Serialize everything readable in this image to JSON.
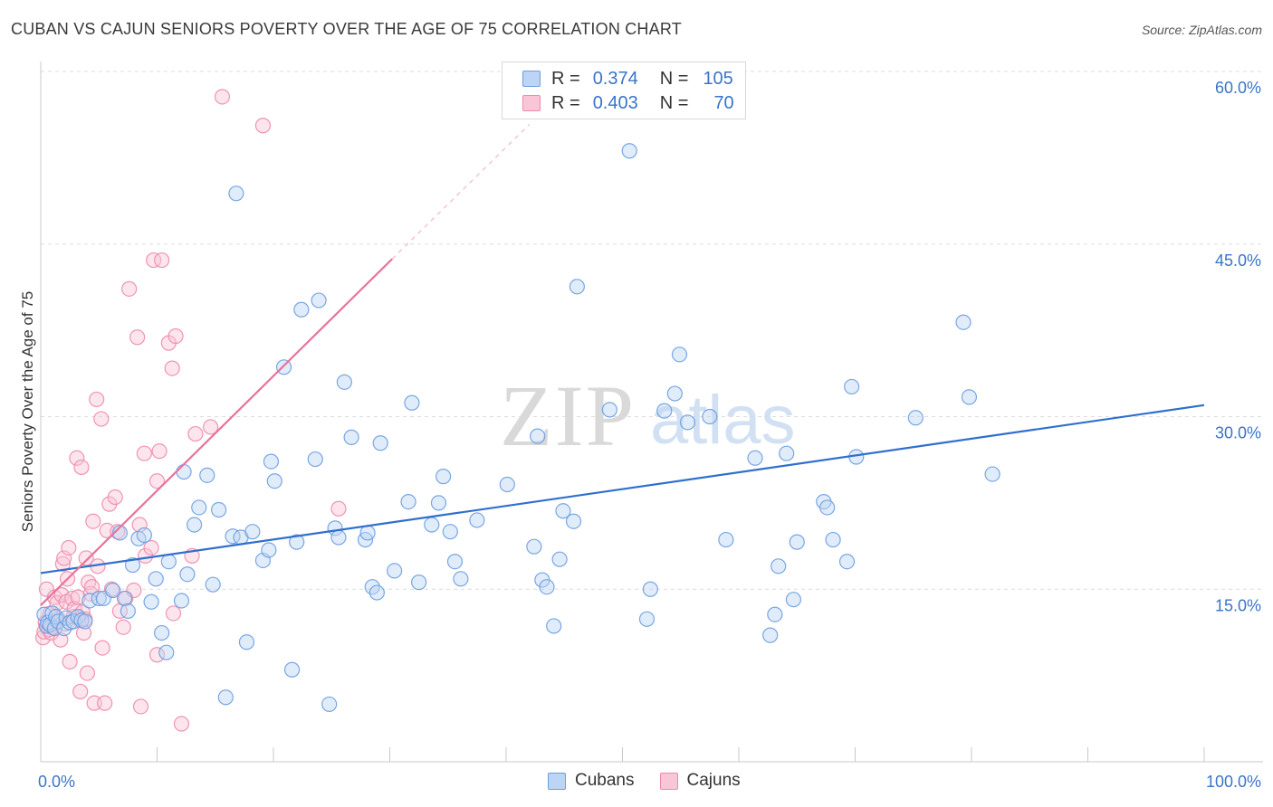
{
  "title": "CUBAN VS CAJUN SENIORS POVERTY OVER THE AGE OF 75 CORRELATION CHART",
  "source": "Source: ZipAtlas.com",
  "watermark": {
    "zip": "ZIP",
    "atlas": "atlas"
  },
  "legend": {
    "rows": [
      {
        "r_label": "R =",
        "r_value": "0.374",
        "n_label": "N =",
        "n_value": "105",
        "color": "#6a9de0",
        "fill": "#bcd4f5"
      },
      {
        "r_label": "R =",
        "r_value": "0.403",
        "n_label": "N =",
        "n_value": "70",
        "color": "#ee8aa8",
        "fill": "#f8c6d6"
      }
    ]
  },
  "bottom_legend": {
    "cubans": "Cubans",
    "cajuns": "Cajuns"
  },
  "chart_data": {
    "type": "scatter",
    "title": "CUBAN VS CAJUN SENIORS POVERTY OVER THE AGE OF 75 CORRELATION CHART",
    "xlabel": "",
    "ylabel": "Seniors Poverty Over the Age of 75",
    "xlim": [
      0,
      100
    ],
    "ylim": [
      0,
      60
    ],
    "x_tick_labels": [
      "0.0%",
      "100.0%"
    ],
    "y_ticks": [
      15,
      30,
      45,
      60
    ],
    "y_tick_labels": [
      "15.0%",
      "30.0%",
      "45.0%",
      "60.0%"
    ],
    "grid": true,
    "legend_position": "top-center",
    "colors": {
      "cubans": "#6a9de0",
      "cubans_line": "#2f6fce",
      "cajuns": "#ee8aa8",
      "cajuns_line": "#e8739a"
    },
    "series": [
      {
        "name": "Cubans",
        "trend": {
          "x": [
            0,
            100
          ],
          "y": [
            16.4,
            31.0
          ]
        },
        "points": [
          [
            0.3,
            12.8
          ],
          [
            0.5,
            11.8
          ],
          [
            0.6,
            12.1
          ],
          [
            0.8,
            11.9
          ],
          [
            1.0,
            12.9
          ],
          [
            1.2,
            11.6
          ],
          [
            1.3,
            12.6
          ],
          [
            1.5,
            12.2
          ],
          [
            2.0,
            11.6
          ],
          [
            2.2,
            12.5
          ],
          [
            2.5,
            12.1
          ],
          [
            2.8,
            12.2
          ],
          [
            3.2,
            12.6
          ],
          [
            3.5,
            12.3
          ],
          [
            3.8,
            12.2
          ],
          [
            4.2,
            14.0
          ],
          [
            5.0,
            14.2
          ],
          [
            5.4,
            14.2
          ],
          [
            6.2,
            14.9
          ],
          [
            6.8,
            19.9
          ],
          [
            7.2,
            14.2
          ],
          [
            7.5,
            13.1
          ],
          [
            7.9,
            17.1
          ],
          [
            8.4,
            19.4
          ],
          [
            8.9,
            19.7
          ],
          [
            9.5,
            13.9
          ],
          [
            9.9,
            15.9
          ],
          [
            10.4,
            11.2
          ],
          [
            10.8,
            9.5
          ],
          [
            11.0,
            17.4
          ],
          [
            12.1,
            14.0
          ],
          [
            12.3,
            25.2
          ],
          [
            12.6,
            16.3
          ],
          [
            13.2,
            20.6
          ],
          [
            13.6,
            22.1
          ],
          [
            14.3,
            24.9
          ],
          [
            14.8,
            15.4
          ],
          [
            15.3,
            21.9
          ],
          [
            15.9,
            5.6
          ],
          [
            16.5,
            19.6
          ],
          [
            16.8,
            49.4
          ],
          [
            17.2,
            19.5
          ],
          [
            17.7,
            10.4
          ],
          [
            18.2,
            20.0
          ],
          [
            19.1,
            17.5
          ],
          [
            19.6,
            18.4
          ],
          [
            19.8,
            26.1
          ],
          [
            20.1,
            24.4
          ],
          [
            20.9,
            34.3
          ],
          [
            21.6,
            8.0
          ],
          [
            22.0,
            19.1
          ],
          [
            22.4,
            39.3
          ],
          [
            23.6,
            26.3
          ],
          [
            23.9,
            40.1
          ],
          [
            24.8,
            5.0
          ],
          [
            25.3,
            20.3
          ],
          [
            25.6,
            19.5
          ],
          [
            26.1,
            33.0
          ],
          [
            26.7,
            28.2
          ],
          [
            27.9,
            19.3
          ],
          [
            28.1,
            19.9
          ],
          [
            28.5,
            15.2
          ],
          [
            28.9,
            14.7
          ],
          [
            29.2,
            27.7
          ],
          [
            30.4,
            16.6
          ],
          [
            31.6,
            22.6
          ],
          [
            31.9,
            31.2
          ],
          [
            32.5,
            15.6
          ],
          [
            33.6,
            20.6
          ],
          [
            34.2,
            22.5
          ],
          [
            34.6,
            24.8
          ],
          [
            35.2,
            20.0
          ],
          [
            35.6,
            17.4
          ],
          [
            36.1,
            15.9
          ],
          [
            37.5,
            21.0
          ],
          [
            40.1,
            24.1
          ],
          [
            42.4,
            18.7
          ],
          [
            42.7,
            28.3
          ],
          [
            43.1,
            15.8
          ],
          [
            43.5,
            15.2
          ],
          [
            44.1,
            11.8
          ],
          [
            44.6,
            17.6
          ],
          [
            44.9,
            21.8
          ],
          [
            45.8,
            20.9
          ],
          [
            46.1,
            41.3
          ],
          [
            48.9,
            30.6
          ],
          [
            50.6,
            53.1
          ],
          [
            52.1,
            12.4
          ],
          [
            52.4,
            15.0
          ],
          [
            53.6,
            30.5
          ],
          [
            54.5,
            32.0
          ],
          [
            54.9,
            35.4
          ],
          [
            55.6,
            29.5
          ],
          [
            57.5,
            30.0
          ],
          [
            58.9,
            19.3
          ],
          [
            61.4,
            26.4
          ],
          [
            62.7,
            11.0
          ],
          [
            63.1,
            12.8
          ],
          [
            63.4,
            17.0
          ],
          [
            64.1,
            26.8
          ],
          [
            64.7,
            14.1
          ],
          [
            65.0,
            19.1
          ],
          [
            67.3,
            22.6
          ],
          [
            67.6,
            22.1
          ],
          [
            68.1,
            19.3
          ],
          [
            69.3,
            17.4
          ],
          [
            69.7,
            32.6
          ],
          [
            70.1,
            26.5
          ],
          [
            75.2,
            29.9
          ],
          [
            79.3,
            38.2
          ],
          [
            79.8,
            31.7
          ],
          [
            81.8,
            25.0
          ]
        ]
      },
      {
        "name": "Cajuns",
        "trend": {
          "x": [
            0,
            30.2
          ],
          "y": [
            13.6,
            43.7
          ]
        },
        "trend_dashed": {
          "x": [
            30.2,
            42.0
          ],
          "y": [
            43.7,
            55.4
          ]
        },
        "points": [
          [
            0.2,
            10.8
          ],
          [
            0.3,
            11.3
          ],
          [
            0.4,
            12.1
          ],
          [
            0.5,
            15.0
          ],
          [
            0.7,
            11.5
          ],
          [
            0.8,
            12.9
          ],
          [
            0.9,
            11.2
          ],
          [
            1.0,
            11.7
          ],
          [
            1.2,
            14.3
          ],
          [
            1.4,
            13.8
          ],
          [
            1.5,
            12.4
          ],
          [
            1.7,
            10.6
          ],
          [
            1.8,
            14.5
          ],
          [
            1.9,
            17.2
          ],
          [
            2.0,
            17.7
          ],
          [
            2.1,
            12.0
          ],
          [
            2.2,
            13.9
          ],
          [
            2.3,
            15.9
          ],
          [
            2.4,
            18.6
          ],
          [
            2.5,
            8.7
          ],
          [
            2.7,
            14.2
          ],
          [
            2.8,
            12.6
          ],
          [
            2.9,
            13.3
          ],
          [
            3.1,
            26.4
          ],
          [
            3.2,
            14.3
          ],
          [
            3.3,
            12.4
          ],
          [
            3.4,
            6.1
          ],
          [
            3.5,
            25.6
          ],
          [
            3.6,
            13.0
          ],
          [
            3.7,
            11.2
          ],
          [
            3.8,
            12.4
          ],
          [
            3.9,
            17.7
          ],
          [
            4.0,
            7.7
          ],
          [
            4.1,
            15.6
          ],
          [
            4.3,
            14.6
          ],
          [
            4.4,
            15.2
          ],
          [
            4.5,
            20.9
          ],
          [
            4.6,
            5.1
          ],
          [
            4.8,
            31.5
          ],
          [
            4.9,
            17.0
          ],
          [
            5.2,
            29.8
          ],
          [
            5.3,
            9.9
          ],
          [
            5.5,
            5.1
          ],
          [
            5.7,
            20.1
          ],
          [
            5.9,
            22.4
          ],
          [
            6.1,
            15.0
          ],
          [
            6.4,
            23.0
          ],
          [
            6.6,
            20.0
          ],
          [
            6.8,
            13.1
          ],
          [
            7.1,
            11.7
          ],
          [
            7.3,
            14.2
          ],
          [
            7.6,
            41.1
          ],
          [
            8.0,
            14.9
          ],
          [
            8.3,
            36.9
          ],
          [
            8.5,
            20.6
          ],
          [
            8.6,
            4.8
          ],
          [
            8.9,
            26.8
          ],
          [
            9.0,
            17.9
          ],
          [
            9.5,
            18.6
          ],
          [
            9.7,
            43.6
          ],
          [
            10.0,
            24.4
          ],
          [
            10.0,
            9.3
          ],
          [
            10.2,
            27.0
          ],
          [
            10.4,
            43.6
          ],
          [
            11.0,
            36.4
          ],
          [
            11.3,
            34.2
          ],
          [
            11.4,
            12.9
          ],
          [
            11.6,
            37.0
          ],
          [
            12.1,
            3.3
          ],
          [
            13.0,
            17.9
          ],
          [
            13.3,
            28.5
          ],
          [
            14.6,
            29.1
          ],
          [
            15.6,
            57.8
          ],
          [
            19.1,
            55.3
          ],
          [
            25.6,
            22.0
          ]
        ]
      }
    ]
  }
}
